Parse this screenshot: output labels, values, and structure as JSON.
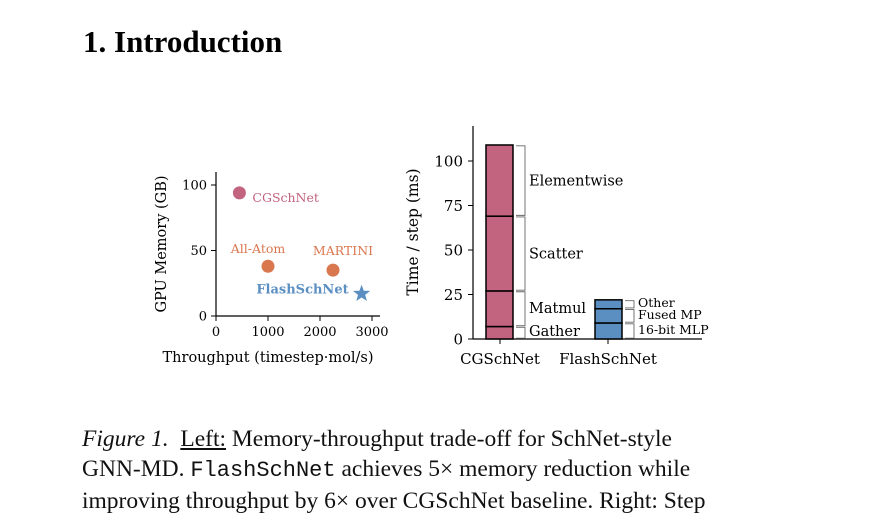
{
  "section": {
    "title": "1. Introduction"
  },
  "chart_data": [
    {
      "type": "scatter",
      "xlabel": "Throughput (timestep·mol/s)",
      "ylabel": "GPU Memory (GB)",
      "xlim": [
        0,
        3200
      ],
      "ylim": [
        0,
        110
      ],
      "xticks": [
        0,
        1000,
        2000,
        3000
      ],
      "yticks": [
        0,
        50,
        100
      ],
      "points": [
        {
          "name": "CGSchNet",
          "x": 450,
          "y": 94,
          "color": "#c2637f",
          "marker": "circle"
        },
        {
          "name": "All-Atom",
          "x": 1000,
          "y": 38,
          "color": "#d9774f",
          "marker": "circle"
        },
        {
          "name": "MARTINI",
          "x": 2250,
          "y": 35,
          "color": "#d9774f",
          "marker": "circle"
        },
        {
          "name": "FlashSchNet",
          "x": 2800,
          "y": 17,
          "color": "#5b8fc1",
          "marker": "star"
        }
      ]
    },
    {
      "type": "bar",
      "stacked": true,
      "ylabel": "Time / step (ms)",
      "ylim": [
        0,
        120
      ],
      "yticks": [
        0,
        25,
        50,
        75,
        100
      ],
      "categories": [
        "CGSchNet",
        "FlashSchNet"
      ],
      "bars": [
        {
          "category": "CGSchNet",
          "color": "#c2637f",
          "segments": [
            {
              "label": "Gather",
              "value": 7
            },
            {
              "label": "Matmul",
              "value": 20
            },
            {
              "label": "Scatter",
              "value": 42
            },
            {
              "label": "Elementwise",
              "value": 40
            }
          ]
        },
        {
          "category": "FlashSchNet",
          "color": "#5b8fc1",
          "segments": [
            {
              "label": "16-bit MLP",
              "value": 9
            },
            {
              "label": "Fused MP",
              "value": 8
            },
            {
              "label": "Other",
              "value": 5
            }
          ]
        }
      ]
    }
  ],
  "caption": {
    "figure_label": "Figure 1.",
    "left_label": "Left:",
    "line1_text": "Memory-throughput trade-off for SchNet-style",
    "line2_pre": "GNN-MD.",
    "line2_mono": "FlashSchNet",
    "line2_mid": "achieves",
    "line2_factor": "5×",
    "line2_post": "memory reduction while",
    "line3_text": "improving throughput by 6× over CGSchNet baseline. Right: Step"
  }
}
